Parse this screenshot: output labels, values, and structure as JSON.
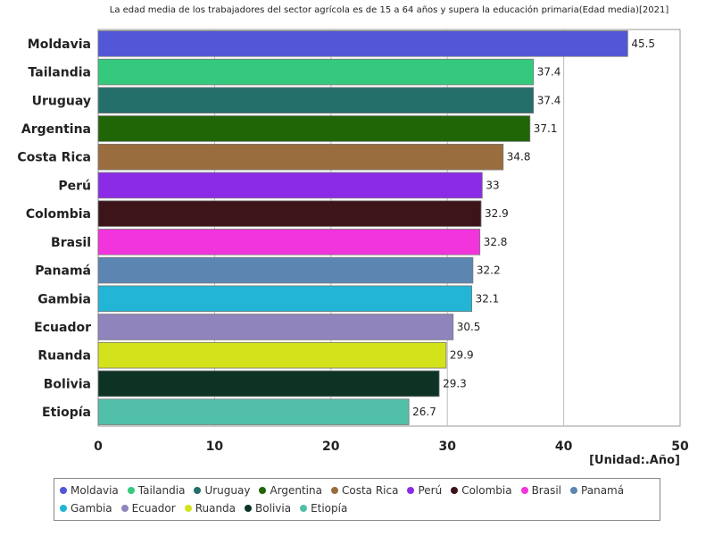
{
  "chart_data": {
    "type": "bar",
    "orientation": "horizontal",
    "title": "La edad media de los trabajadores del sector agrícola es de 15 a 64 años y supera la educación primaria(Edad media)[2021]",
    "unit_label": "[Unidad:.Año]",
    "categories": [
      "Moldavia",
      "Tailandia",
      "Uruguay",
      "Argentina",
      "Costa Rica",
      "Perú",
      "Colombia",
      "Brasil",
      "Panamá",
      "Gambia",
      "Ecuador",
      "Ruanda",
      "Bolivia",
      "Etiopía"
    ],
    "values": [
      45.5,
      37.4,
      37.4,
      37.1,
      34.8,
      33,
      32.9,
      32.8,
      32.2,
      32.1,
      30.5,
      29.9,
      29.3,
      26.7
    ],
    "value_labels": [
      "45.5",
      "37.4",
      "37.4",
      "37.1",
      "34.8",
      "33",
      "32.9",
      "32.8",
      "32.2",
      "32.1",
      "30.5",
      "29.9",
      "29.3",
      "26.7"
    ],
    "colors": [
      "#5257d8",
      "#35c97e",
      "#256f6b",
      "#206606",
      "#9a6d3e",
      "#8c2be6",
      "#3e141b",
      "#f234dc",
      "#5c86b1",
      "#22b5d5",
      "#9084bd",
      "#d4e21b",
      "#0d3324",
      "#52bfa8"
    ],
    "xlim": [
      0,
      50
    ],
    "xticks": [
      0,
      10,
      20,
      30,
      40,
      50
    ],
    "xtick_labels": [
      "0",
      "10",
      "20",
      "30",
      "40",
      "50"
    ],
    "grid": true,
    "legend_position": "bottom"
  }
}
